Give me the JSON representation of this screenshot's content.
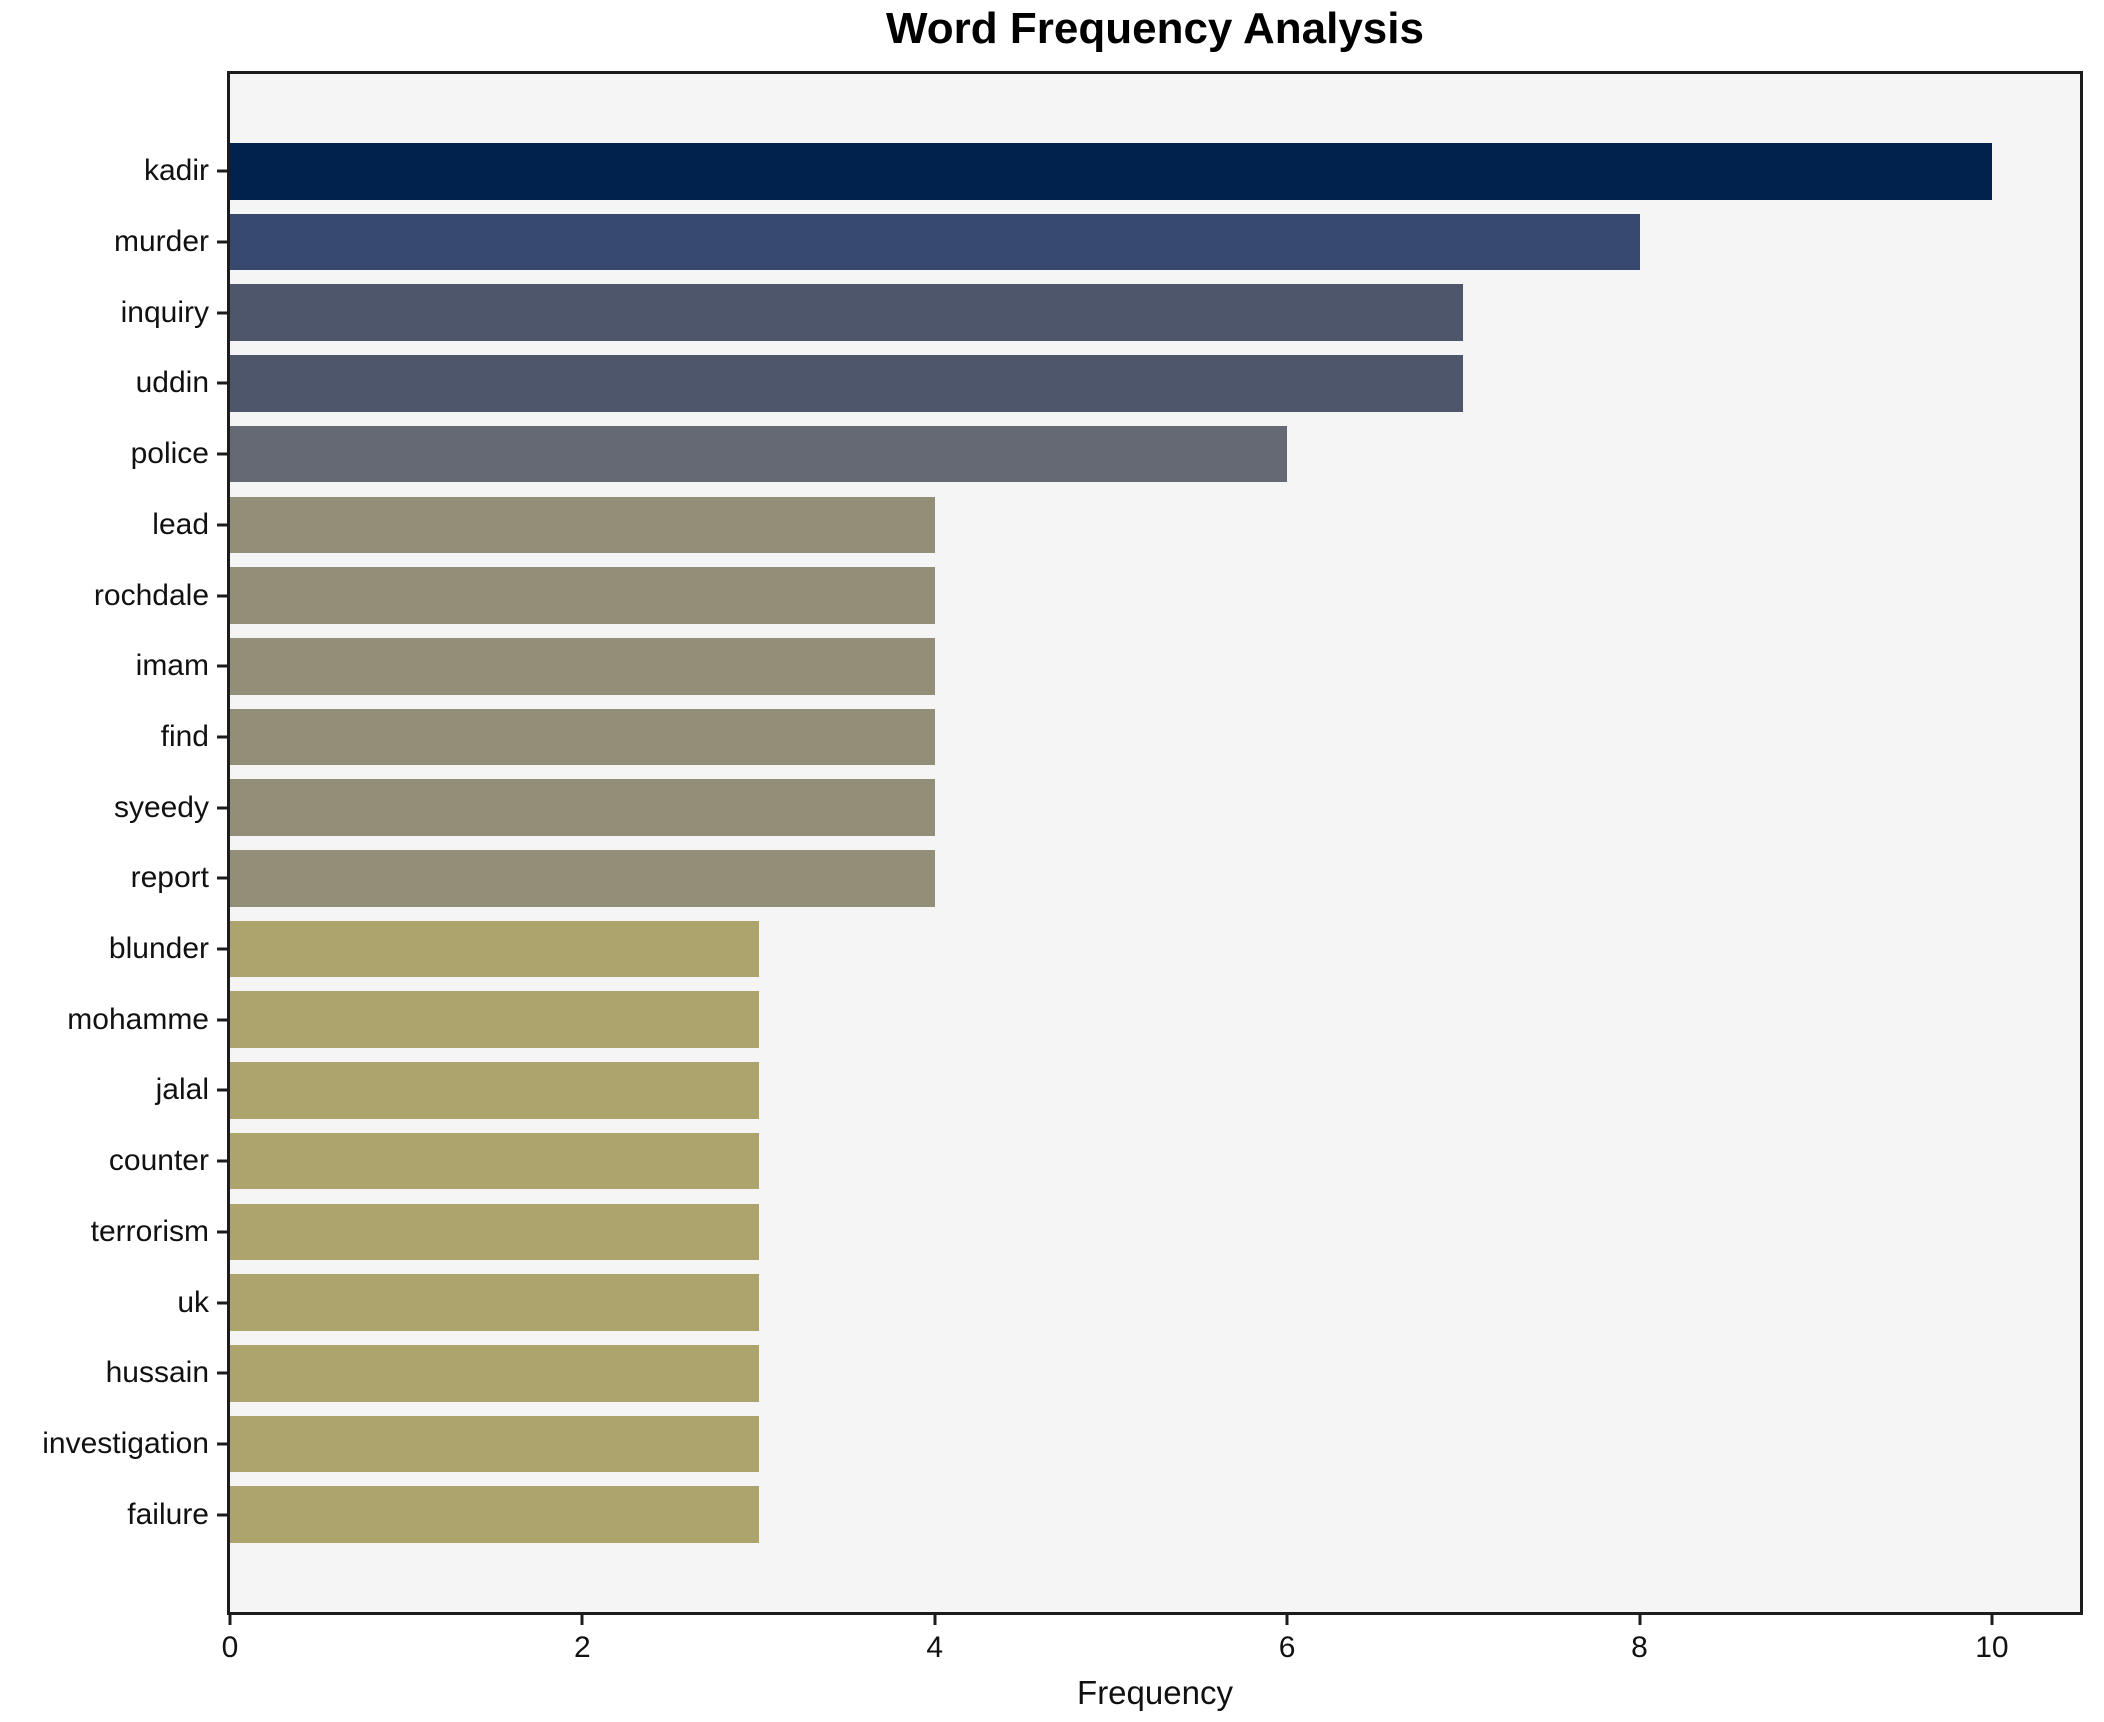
{
  "figure": {
    "background": "#ffffff"
  },
  "chart_data": {
    "type": "bar",
    "orientation": "horizontal",
    "title": "Word Frequency Analysis",
    "xlabel": "Frequency",
    "ylabel": "",
    "categories": [
      "kadir",
      "murder",
      "inquiry",
      "uddin",
      "police",
      "lead",
      "rochdale",
      "imam",
      "find",
      "syeedy",
      "report",
      "blunder",
      "mohamme",
      "jalal",
      "counter",
      "terrorism",
      "uk",
      "hussain",
      "investigation",
      "failure"
    ],
    "values": [
      10,
      8,
      7,
      7,
      6,
      4,
      4,
      4,
      4,
      4,
      4,
      3,
      3,
      3,
      3,
      3,
      3,
      3,
      3,
      3
    ],
    "bar_colors": [
      "#01224D",
      "#37496E",
      "#4E566C",
      "#4E566C",
      "#656973",
      "#938E77",
      "#938E77",
      "#938E77",
      "#938E77",
      "#938E77",
      "#938E77",
      "#ADA46D",
      "#ADA46D",
      "#ADA46D",
      "#ADA46D",
      "#ADA46D",
      "#ADA46D",
      "#ADA46D",
      "#ADA46D",
      "#ADA46D"
    ],
    "xticks": [
      0,
      2,
      4,
      6,
      8,
      10
    ],
    "xlim": [
      0,
      10.5
    ],
    "grid": false,
    "legend": null,
    "plot_background": "#F5F5F6",
    "spine_color": "#1c1c1c",
    "text_color": "#111111"
  }
}
